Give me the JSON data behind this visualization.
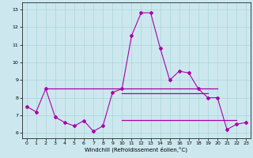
{
  "xlabel": "Windchill (Refroidissement éolien,°C)",
  "ylabel": "",
  "background_color": "#cce8ee",
  "line_color": "#aa00aa",
  "xlim": [
    -0.5,
    23.5
  ],
  "ylim": [
    5.7,
    13.4
  ],
  "yticks": [
    6,
    7,
    8,
    9,
    10,
    11,
    12,
    13
  ],
  "xticks": [
    0,
    1,
    2,
    3,
    4,
    5,
    6,
    7,
    8,
    9,
    10,
    11,
    12,
    13,
    14,
    15,
    16,
    17,
    18,
    19,
    20,
    21,
    22,
    23
  ],
  "line1_x": [
    0,
    1,
    2,
    3,
    4,
    5,
    6,
    7,
    8,
    9,
    10,
    11,
    12,
    13,
    14,
    15,
    16,
    17,
    18,
    19,
    20,
    21,
    22,
    23
  ],
  "line1_y": [
    7.5,
    7.2,
    8.5,
    6.9,
    6.6,
    6.4,
    6.7,
    6.1,
    6.4,
    8.3,
    8.5,
    11.5,
    12.8,
    12.8,
    10.8,
    9.0,
    9.5,
    9.4,
    8.5,
    8.0,
    8.0,
    6.2,
    6.5,
    6.6
  ],
  "hline1_x": [
    2,
    20
  ],
  "hline1_y": 8.5,
  "hline2_x": [
    10,
    19
  ],
  "hline2_y": 8.25,
  "hline3_x": [
    10,
    22
  ],
  "hline3_y": 6.75
}
